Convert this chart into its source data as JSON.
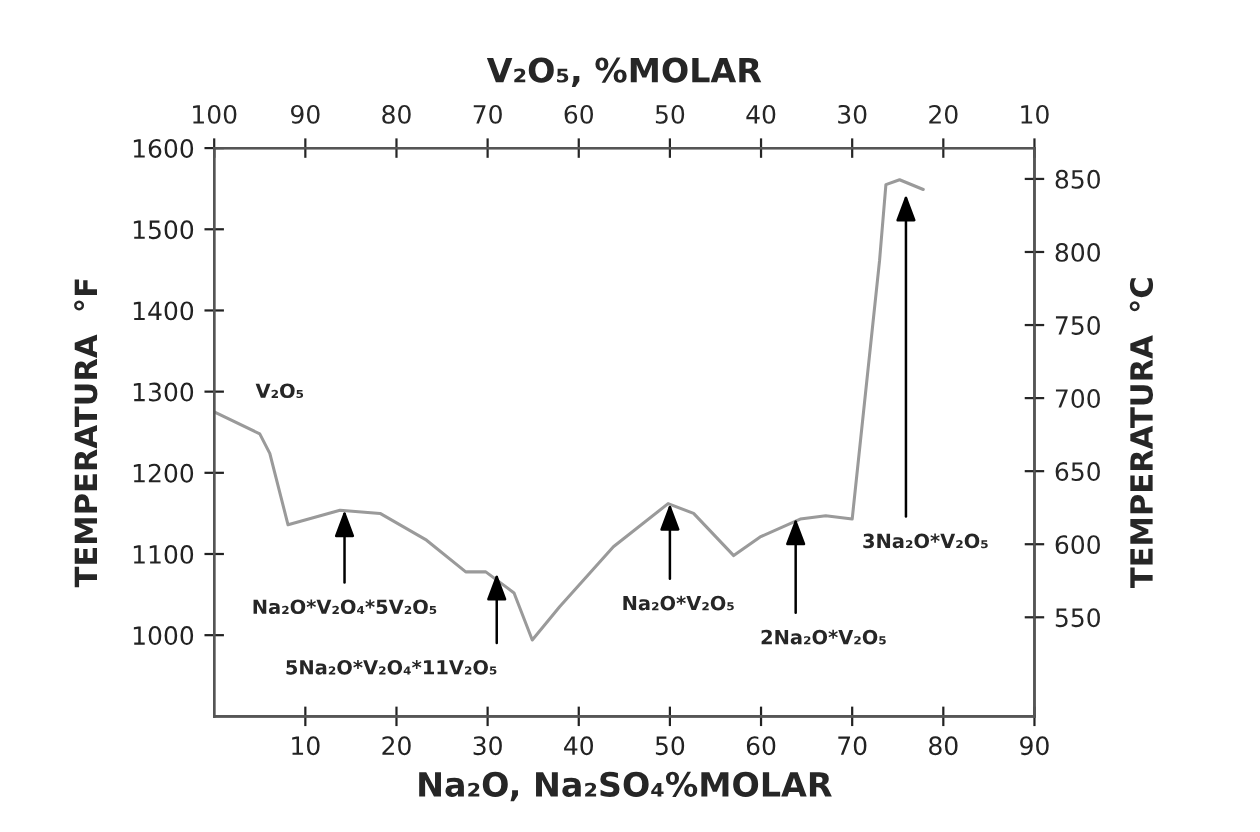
{
  "chart_data": {
    "type": "line",
    "xlabel": "Na₂O, Na₂SO₄%MOLAR",
    "x2label": "V₂O₅, %MOLAR",
    "ylabel": "TEMPERATURA  °F",
    "y2label": "TEMPERATURA  °C",
    "x": [
      0,
      5.0,
      6.1,
      8.1,
      13.8,
      18.2,
      23.3,
      27.6,
      29.8,
      32.9,
      34.9,
      37.9,
      43.8,
      49.8,
      52.6,
      57.0,
      59.9,
      64.3,
      67.1,
      70.0,
      73.0,
      73.7,
      75.2,
      77.8
    ],
    "series": [
      {
        "color": "#9a9a9a",
        "values": [
          1275,
          1248,
          1224,
          1136,
          1154,
          1150,
          1117,
          1078,
          1078,
          1052,
          994,
          1035,
          1109,
          1162,
          1150,
          1098,
          1121,
          1143,
          1147,
          1143,
          1461,
          1555,
          1561,
          1549
        ]
      }
    ],
    "xlim": [
      0,
      90
    ],
    "xticks": [
      10,
      20,
      30,
      40,
      50,
      60,
      70,
      80,
      90
    ],
    "x2lim": [
      100,
      10
    ],
    "x2ticks": [
      100,
      90,
      80,
      70,
      60,
      50,
      40,
      30,
      20,
      10
    ],
    "ylim": [
      900,
      1600
    ],
    "yticks": [
      1000,
      1100,
      1200,
      1300,
      1400,
      1500,
      1600
    ],
    "y2lim": [
      482.2,
      871.1
    ],
    "y2ticks": [
      550,
      600,
      650,
      700,
      750,
      800,
      850
    ],
    "grid": false,
    "marker": "none",
    "line_style": "solid",
    "annotations": [
      "V₂O₅",
      {
        "text": "Na₂O*V₂O₄*5V₂O₅",
        "x": 14.3,
        "y": 1154
      },
      {
        "text": "5Na₂O*V₂O₄*11V₂O₅",
        "x": 31,
        "y": 1076
      },
      {
        "text": "Na₂O*V₂O₅",
        "x": 50,
        "y": 1162
      },
      {
        "text": "2Na₂O*V₂O₅",
        "x": 63.8,
        "y": 1144
      },
      {
        "text": "3Na₂O*V₂O₅",
        "x": 75.9,
        "y": 1543
      }
    ]
  }
}
